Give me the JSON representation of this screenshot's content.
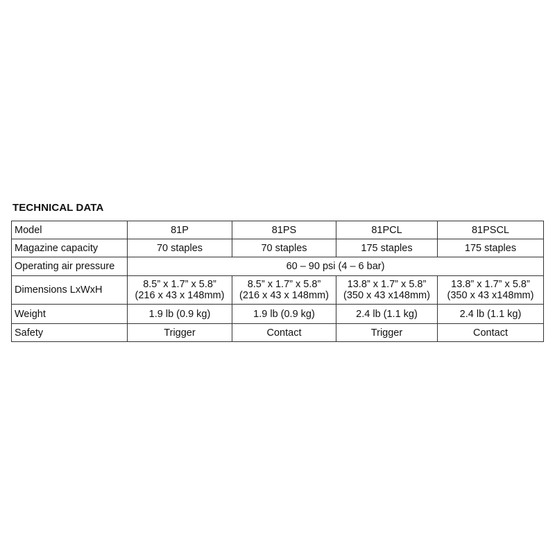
{
  "title": "TECHNICAL DATA",
  "table": {
    "rows": [
      {
        "label": "Model",
        "cells": [
          "81P",
          "81PS",
          "81PCL",
          "81PSCL"
        ]
      },
      {
        "label": "Magazine capacity",
        "cells": [
          "70 staples",
          "70 staples",
          "175 staples",
          "175 staples"
        ]
      },
      {
        "label": "Operating air pressure",
        "span": "60 – 90 psi (4 – 6 bar)"
      },
      {
        "label": "Dimensions LxWxH",
        "cells": [
          {
            "imperial": "8.5” x 1.7” x 5.8”",
            "metric": "(216 x 43 x 148mm)"
          },
          {
            "imperial": "8.5” x 1.7” x 5.8”",
            "metric": "(216 x 43 x 148mm)"
          },
          {
            "imperial": "13.8” x 1.7” x 5.8”",
            "metric": "(350 x 43 x148mm)"
          },
          {
            "imperial": "13.8” x 1.7” x 5.8”",
            "metric": "(350 x 43 x148mm)"
          }
        ]
      },
      {
        "label": "Weight",
        "cells": [
          "1.9 lb (0.9 kg)",
          "1.9 lb (0.9 kg)",
          "2.4 lb (1.1 kg)",
          "2.4 lb (1.1 kg)"
        ]
      },
      {
        "label": "Safety",
        "cells": [
          "Trigger",
          "Contact",
          "Trigger",
          "Contact"
        ]
      }
    ]
  }
}
